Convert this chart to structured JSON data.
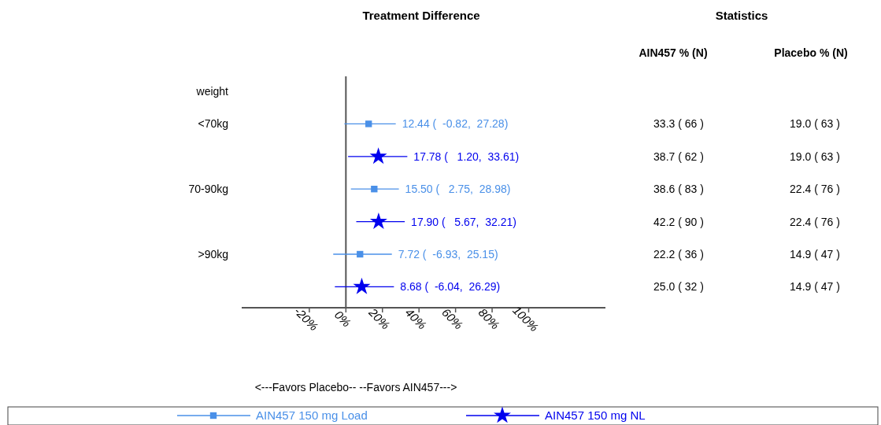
{
  "chart_data": {
    "type": "scatter",
    "orientation": "horizontal",
    "title": "Treatment Difference",
    "categories": [
      "weight",
      "<70kg",
      null,
      "70-90kg",
      null,
      ">90kg",
      null
    ],
    "series": [
      {
        "name": "AIN457 150 mg Load",
        "color": "#4a90e8",
        "marker": "square",
        "values": [
          null,
          12.44,
          null,
          15.5,
          null,
          7.72,
          null
        ],
        "errors": [
          null,
          [
            -0.82,
            27.28
          ],
          null,
          [
            2.75,
            28.98
          ],
          null,
          [
            -6.93,
            25.15
          ],
          null
        ],
        "value_labels": [
          null,
          "12.44 (  -0.82,  27.28)",
          null,
          "15.50 (   2.75,  28.98)",
          null,
          "7.72 (  -6.93,  25.15)",
          null
        ]
      },
      {
        "name": "AIN457 150 mg NL",
        "color": "#0000ee",
        "marker": "star",
        "values": [
          null,
          null,
          17.78,
          null,
          17.9,
          null,
          8.68
        ],
        "errors": [
          null,
          null,
          [
            1.2,
            33.61
          ],
          null,
          [
            5.67,
            32.21
          ],
          null,
          [
            -6.04,
            26.29
          ]
        ],
        "value_labels": [
          null,
          null,
          "17.78 (   1.20,  33.61)",
          null,
          "17.90 (   5.67,  32.21)",
          null,
          "8.68 (  -6.04,  26.29)"
        ]
      }
    ],
    "xlim": [
      -57,
      142
    ],
    "xticks": [
      {
        "value": -20,
        "label": "-20%"
      },
      {
        "value": 0,
        "label": "0%"
      },
      {
        "value": 20,
        "label": "20%"
      },
      {
        "value": 40,
        "label": "40%"
      },
      {
        "value": 60,
        "label": "60%"
      },
      {
        "value": 80,
        "label": "80%"
      },
      {
        "value": 100,
        "label": "100%"
      }
    ],
    "ref_lines": [
      {
        "axis": "x",
        "value": 0,
        "color": "#555555"
      }
    ],
    "legend": "bottom",
    "line_style": "solid",
    "grid": false,
    "annotations": [
      "<---Favors Placebo--  --Favors AIN457--->",
      "Statistics",
      "AIN457 % (N)",
      "Placebo % (N)",
      "33.3 ( 66 )",
      "19.0 ( 63 )",
      "38.7 ( 62 )",
      "19.0 ( 63 )",
      "38.6 ( 83 )",
      "22.4 ( 76 )",
      "42.2 ( 90 )",
      "22.4 ( 76 )",
      "22.2 ( 36 )",
      "14.9 ( 47 )",
      "25.0 ( 32 )",
      "14.9 ( 47 )"
    ]
  }
}
